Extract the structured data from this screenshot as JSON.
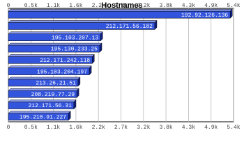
{
  "chart_data": {
    "type": "bar",
    "orientation": "horizontal",
    "title": "Hostnames",
    "categories": [
      "192.92.126.136",
      "212.171.56.182",
      "195.103.207.13",
      "195.130.233.25",
      "212.171.242.118",
      "195.103.204.197",
      "213.26.21.51",
      "208.219.77.29",
      "212.171.56.31",
      "195.210.91.227"
    ],
    "values": [
      5370,
      3560,
      2260,
      2240,
      2060,
      1990,
      1720,
      1690,
      1620,
      1490
    ],
    "color": "#3355dd",
    "xlim": [
      0,
      5400
    ],
    "xticks": [
      0,
      {
        "value": 540,
        "label": "0.5k"
      },
      {
        "value": 1080,
        "label": "1.1k"
      },
      {
        "value": 1620,
        "label": "1.6k"
      },
      {
        "value": 2160,
        "label": "2.2k"
      },
      {
        "value": 2700,
        "label": "2.7k"
      },
      {
        "value": 3240,
        "label": "3.2k"
      },
      {
        "value": 3780,
        "label": "3.8k"
      },
      {
        "value": 4320,
        "label": "4.3k"
      },
      {
        "value": 4860,
        "label": "4.9k"
      },
      {
        "value": 5400,
        "label": "5.4k"
      }
    ],
    "grid": true
  }
}
